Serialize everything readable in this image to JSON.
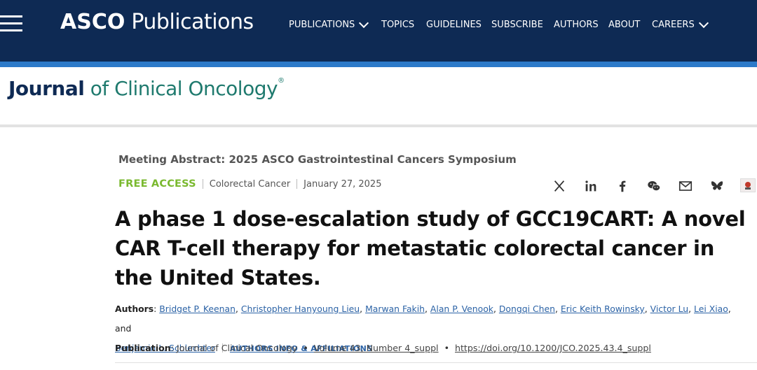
{
  "header": {
    "brand_bold": "ASCO",
    "brand_rest": "Publications",
    "nav": [
      {
        "label": "PUBLICATIONS",
        "has_dropdown": true
      },
      {
        "label": "TOPICS",
        "has_dropdown": false
      },
      {
        "label": "GUIDELINES",
        "has_dropdown": false
      },
      {
        "label": "SUBSCRIBE",
        "has_dropdown": false
      },
      {
        "label": "AUTHORS",
        "has_dropdown": false
      },
      {
        "label": "ABOUT",
        "has_dropdown": false
      },
      {
        "label": "CAREERS",
        "has_dropdown": true
      }
    ]
  },
  "journal": {
    "word1": "Journal",
    "word2": "of Clinical Oncology",
    "mark": "®"
  },
  "article": {
    "meeting_line": "Meeting Abstract: 2025 ASCO Gastrointestinal Cancers Symposium",
    "access": "FREE ACCESS",
    "category": "Colorectal Cancer",
    "date": "January 27, 2025",
    "title": "A phase 1 dose-escalation study of GCC19CART: A novel CAR T-cell therapy for metastatic colorectal cancer in the United States.",
    "authors_label": "Authors",
    "authors": [
      "Bridget P. Keenan",
      "Christopher Hanyoung Lieu",
      "Marwan Fakih",
      "Alan P. Venook",
      "Dongqi Chen",
      "Eric Keith Rowinsky",
      "Victor Lu",
      "Lei Xiao",
      "Benjamin L. Schlechter"
    ],
    "and_text": "and",
    "affiliations_label": "AUTHORS INFO & AFFILIATIONS",
    "publication_label": "Publication",
    "publication_name": "Journal of Clinical Oncology",
    "volume": "Volume 43, Number 4_suppl",
    "doi": "https://doi.org/10.1200/JCO.2025.43.4_suppl"
  },
  "share_icons": [
    "x-icon",
    "linkedin-icon",
    "facebook-icon",
    "wechat-icon",
    "email-icon",
    "bluesky-icon",
    "badge-icon"
  ],
  "colors": {
    "nav_bg": "#0e2a54",
    "accent_blue": "#2c7ac9",
    "free_access_green": "#7ab92f",
    "link_blue": "#2c63a6",
    "journal_teal": "#1f7a6e"
  }
}
